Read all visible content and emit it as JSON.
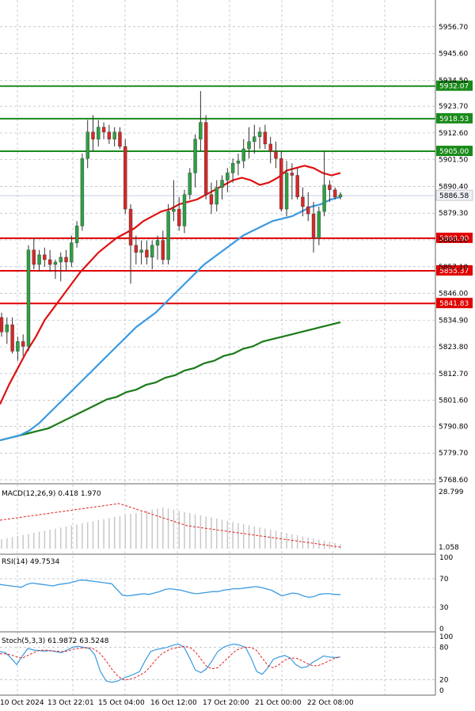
{
  "chart_data": {
    "type": "candlestick",
    "price_axis": {
      "ticks": [
        "5956.70",
        "5945.60",
        "5934.50",
        "5923.70",
        "5912.60",
        "5901.50",
        "5890.40",
        "5879.30",
        "5868.20",
        "5857.10",
        "5846.00",
        "5834.90",
        "5823.80",
        "5812.70",
        "5801.60",
        "5790.80",
        "5779.70",
        "5768.60"
      ],
      "current_price": "5886.58"
    },
    "time_axis": [
      "10 Oct 2024",
      "13 Oct 22:01",
      "15 Oct 04:00",
      "16 Oct 12:00",
      "17 Oct 20:00",
      "21 Oct 00:00",
      "22 Oct 08:00"
    ],
    "levels": [
      {
        "label": "5932.07",
        "value": 5932.07,
        "color": "#1a8a1a"
      },
      {
        "label": "5918.53",
        "value": 5918.53,
        "color": "#1a8a1a"
      },
      {
        "label": "5905.00",
        "value": 5905.0,
        "color": "#1a8a1a"
      },
      {
        "label": "5868.90",
        "value": 5868.9,
        "color": "#e00000"
      },
      {
        "label": "5855.37",
        "value": 5855.37,
        "color": "#e00000"
      },
      {
        "label": "5841.83",
        "value": 5841.83,
        "color": "#e00000"
      }
    ],
    "candles": [
      [
        5836,
        5838,
        5828,
        5830
      ],
      [
        5830,
        5836,
        5825,
        5833
      ],
      [
        5833,
        5836,
        5821,
        5822
      ],
      [
        5822,
        5828,
        5818,
        5826
      ],
      [
        5826,
        5829,
        5820,
        5824
      ],
      [
        5824,
        5866,
        5822,
        5864
      ],
      [
        5864,
        5869,
        5856,
        5858
      ],
      [
        5858,
        5864,
        5855,
        5862
      ],
      [
        5862,
        5865,
        5857,
        5860
      ],
      [
        5860,
        5864,
        5855,
        5858
      ],
      [
        5858,
        5860,
        5852,
        5859
      ],
      [
        5859,
        5863,
        5851,
        5861
      ],
      [
        5861,
        5864,
        5855,
        5859
      ],
      [
        5859,
        5870,
        5857,
        5867
      ],
      [
        5867,
        5876,
        5865,
        5874
      ],
      [
        5874,
        5904,
        5872,
        5902
      ],
      [
        5902,
        5918,
        5898,
        5913
      ],
      [
        5913,
        5920,
        5905,
        5910
      ],
      [
        5910,
        5918,
        5907,
        5915
      ],
      [
        5915,
        5917,
        5910,
        5913
      ],
      [
        5913,
        5916,
        5908,
        5910
      ],
      [
        5910,
        5915,
        5907,
        5913
      ],
      [
        5913,
        5915,
        5906,
        5907
      ],
      [
        5907,
        5910,
        5879,
        5881
      ],
      [
        5881,
        5883,
        5850,
        5866
      ],
      [
        5866,
        5870,
        5858,
        5863
      ],
      [
        5863,
        5868,
        5858,
        5864
      ],
      [
        5864,
        5868,
        5858,
        5861
      ],
      [
        5861,
        5868,
        5856,
        5866
      ],
      [
        5866,
        5870,
        5860,
        5868
      ],
      [
        5868,
        5872,
        5858,
        5860
      ],
      [
        5860,
        5883,
        5858,
        5880
      ],
      [
        5880,
        5893,
        5876,
        5881
      ],
      [
        5881,
        5886,
        5872,
        5874
      ],
      [
        5874,
        5889,
        5871,
        5887
      ],
      [
        5887,
        5898,
        5885,
        5896
      ],
      [
        5896,
        5912,
        5890,
        5910
      ],
      [
        5910,
        5930,
        5905,
        5917
      ],
      [
        5917,
        5920,
        5885,
        5887
      ],
      [
        5887,
        5892,
        5879,
        5883
      ],
      [
        5883,
        5893,
        5880,
        5890
      ],
      [
        5890,
        5895,
        5885,
        5893
      ],
      [
        5893,
        5898,
        5888,
        5896
      ],
      [
        5896,
        5902,
        5892,
        5900
      ],
      [
        5900,
        5904,
        5895,
        5901
      ],
      [
        5901,
        5910,
        5898,
        5906
      ],
      [
        5906,
        5915,
        5902,
        5909
      ],
      [
        5909,
        5916,
        5904,
        5911
      ],
      [
        5911,
        5915,
        5906,
        5913
      ],
      [
        5913,
        5916,
        5906,
        5908
      ],
      [
        5908,
        5911,
        5900,
        5905
      ],
      [
        5905,
        5909,
        5898,
        5902
      ],
      [
        5902,
        5905,
        5880,
        5881
      ],
      [
        5881,
        5901,
        5878,
        5896
      ],
      [
        5896,
        5900,
        5885,
        5895
      ],
      [
        5895,
        5898,
        5885,
        5886
      ],
      [
        5886,
        5890,
        5878,
        5882
      ],
      [
        5882,
        5888,
        5876,
        5879
      ],
      [
        5879,
        5884,
        5863,
        5869
      ],
      [
        5869,
        5882,
        5866,
        5880
      ],
      [
        5880,
        5905,
        5878,
        5891
      ],
      [
        5891,
        5893,
        5884,
        5889
      ],
      [
        5889,
        5890,
        5885,
        5886
      ],
      [
        5886,
        5888,
        5885,
        5887
      ]
    ],
    "ma_fast": [
      5800,
      5808,
      5815,
      5822,
      5828,
      5835,
      5840,
      5845,
      5850,
      5855,
      5859,
      5863,
      5866,
      5869,
      5871,
      5873,
      5876,
      5878,
      5880,
      5881,
      5883,
      5884,
      5885,
      5887,
      5889,
      5891,
      5893,
      5894,
      5893,
      5891,
      5892,
      5894,
      5897,
      5898,
      5899,
      5898,
      5896,
      5895,
      5896
    ],
    "ma_mid": [
      5785,
      5786,
      5787,
      5789,
      5792,
      5796,
      5800,
      5804,
      5808,
      5812,
      5816,
      5820,
      5824,
      5828,
      5832,
      5835,
      5838,
      5842,
      5846,
      5850,
      5854,
      5858,
      5861,
      5864,
      5867,
      5870,
      5872,
      5874,
      5876,
      5877,
      5878,
      5880,
      5882,
      5883,
      5885,
      5886
    ],
    "ma_slow": [
      5785,
      5786,
      5787,
      5788,
      5789,
      5790,
      5792,
      5794,
      5796,
      5798,
      5800,
      5802,
      5803,
      5805,
      5806,
      5808,
      5809,
      5811,
      5812,
      5814,
      5815,
      5817,
      5818,
      5820,
      5821,
      5823,
      5824,
      5826,
      5827,
      5828,
      5829,
      5830,
      5831,
      5832,
      5833,
      5834
    ],
    "macd": {
      "label": "MACD(12,26,9) 0.418 1.970",
      "ticks": [
        "28.799",
        "1.058"
      ]
    },
    "rsi": {
      "label": "RSI(14) 49.7534",
      "ticks": [
        "100",
        "70",
        "30",
        "0"
      ],
      "values": [
        62,
        61,
        60,
        59,
        58,
        62,
        64,
        63,
        62,
        61,
        60,
        62,
        63,
        64,
        66,
        68,
        68,
        67,
        66,
        65,
        64,
        63,
        55,
        47,
        46,
        47,
        48,
        49,
        48,
        50,
        52,
        55,
        56,
        55,
        54,
        52,
        50,
        49,
        50,
        51,
        52,
        52,
        54,
        55,
        56,
        56,
        57,
        58,
        59,
        58,
        56,
        54,
        50,
        46,
        48,
        50,
        49,
        46,
        44,
        45,
        48,
        49,
        49,
        48,
        48
      ]
    },
    "stoch": {
      "label": "Stoch(5,3,3) 61.9872 63.5248",
      "ticks": [
        "100",
        "80",
        "20",
        "0"
      ],
      "k": [
        72,
        70,
        60,
        48,
        64,
        78,
        75,
        74,
        73,
        74,
        72,
        70,
        75,
        80,
        82,
        80,
        78,
        66,
        35,
        18,
        15,
        17,
        22,
        26,
        30,
        35,
        55,
        72,
        76,
        78,
        80,
        84,
        86,
        80,
        60,
        38,
        33,
        40,
        55,
        72,
        80,
        84,
        86,
        84,
        80,
        60,
        35,
        30,
        42,
        58,
        62,
        65,
        60,
        48,
        42,
        44,
        52,
        58,
        64,
        62,
        61,
        62
      ],
      "d": [
        68,
        68,
        66,
        62,
        60,
        65,
        70,
        74,
        75,
        74,
        73,
        72,
        73,
        76,
        78,
        79,
        79,
        76,
        68,
        55,
        40,
        28,
        20,
        20,
        23,
        28,
        34,
        45,
        58,
        68,
        74,
        78,
        80,
        82,
        80,
        72,
        58,
        45,
        40,
        42,
        52,
        62,
        72,
        78,
        80,
        80,
        74,
        60,
        46,
        42,
        48,
        56,
        60,
        60,
        56,
        50,
        46,
        46,
        50,
        55,
        60,
        62
      ]
    },
    "colors": {
      "bull": "#2ea043",
      "bear": "#d62828",
      "ma_fast": "#e01010",
      "ma_mid": "#3b9ae1",
      "ma_slow": "#1a7a1a",
      "grid": "#b0b8c4",
      "dashed_red": "#e02020",
      "indicator_blue": "#3b9ae1"
    }
  }
}
